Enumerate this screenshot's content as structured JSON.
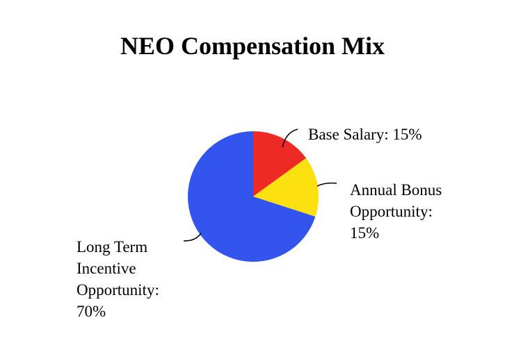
{
  "chart_data": {
    "type": "pie",
    "title": "NEO Compensation Mix",
    "categories": [
      "Base Salary",
      "Annual Bonus Opportunity",
      "Long Term Incentive Opportunity"
    ],
    "values": [
      15,
      15,
      70
    ],
    "unit": "%",
    "colors": [
      "#ee2a24",
      "#fde010",
      "#3355ee"
    ],
    "labels": [
      [
        "Base Salary: 15%"
      ],
      [
        "Annual Bonus",
        "Opportunity:",
        "15%"
      ],
      [
        "Long Term",
        "Incentive",
        "Opportunity:",
        "70%"
      ]
    ],
    "start_angle_deg": 0,
    "direction": "clockwise"
  }
}
